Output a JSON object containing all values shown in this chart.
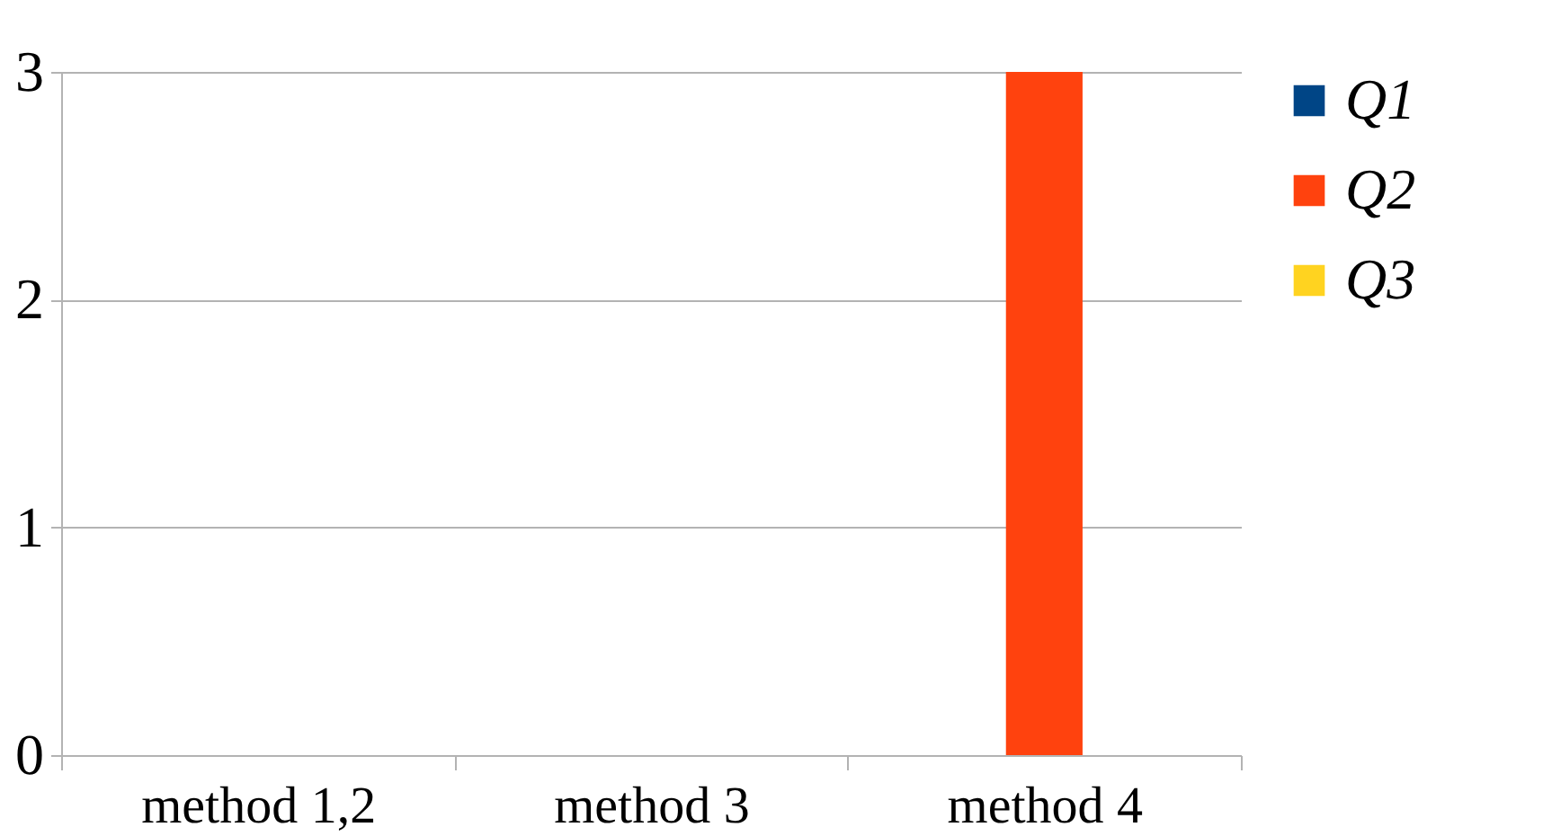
{
  "chart_data": {
    "type": "bar",
    "categories": [
      "method 1,2",
      "method 3",
      "method 4"
    ],
    "series": [
      {
        "name": "Q1",
        "color": "#004586",
        "values": [
          0,
          0,
          0
        ]
      },
      {
        "name": "Q2",
        "color": "#ff420e",
        "values": [
          0,
          0,
          3
        ]
      },
      {
        "name": "Q3",
        "color": "#ffd320",
        "values": [
          0,
          0,
          0
        ]
      }
    ],
    "ylim": [
      0,
      3
    ],
    "yticks": [
      0,
      1,
      2,
      3
    ],
    "grid": "y",
    "legend": "right"
  }
}
